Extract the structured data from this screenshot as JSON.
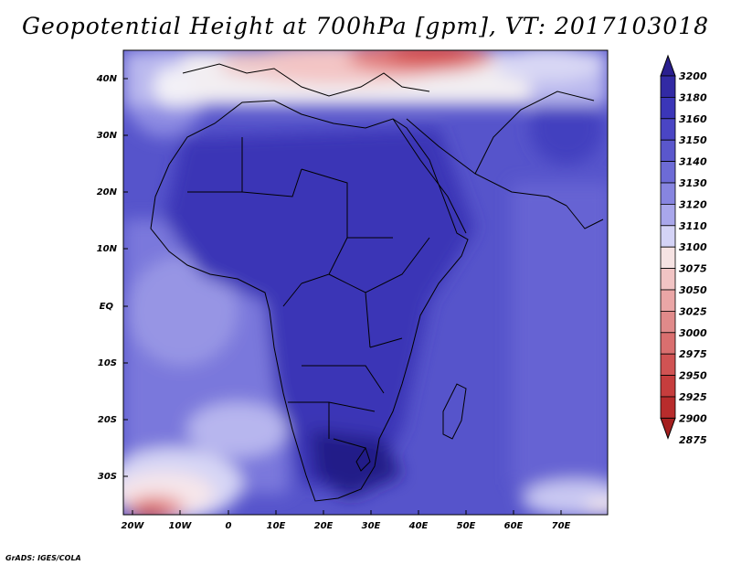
{
  "title": "Geopotential Height at 700hPa [gpm], VT: 2017103018",
  "footer": "GrADS: IGES/COLA",
  "map": {
    "lat_labels": [
      "40N",
      "30N",
      "20N",
      "10N",
      "EQ",
      "10S",
      "20S",
      "30S"
    ],
    "lon_labels": [
      "20W",
      "10W",
      "0",
      "10E",
      "20E",
      "30E",
      "40E",
      "50E",
      "60E",
      "70E"
    ]
  },
  "colorbar": {
    "levels": [
      "3200",
      "3180",
      "3160",
      "3150",
      "3140",
      "3130",
      "3120",
      "3110",
      "3100",
      "3075",
      "3050",
      "3025",
      "3000",
      "2975",
      "2950",
      "2925",
      "2900",
      "2875"
    ],
    "colors": [
      "#2a1f8f",
      "#322aa4",
      "#3b36b8",
      "#4a45c4",
      "#5a57cc",
      "#6d6bd6",
      "#8785e0",
      "#a9a7eb",
      "#d4d3f6",
      "#f6e3e3",
      "#f1c4c4",
      "#eaa6a6",
      "#e08a8a",
      "#d96f6f",
      "#d05353",
      "#c63d3d",
      "#b82c2c",
      "#a41f1f"
    ]
  }
}
